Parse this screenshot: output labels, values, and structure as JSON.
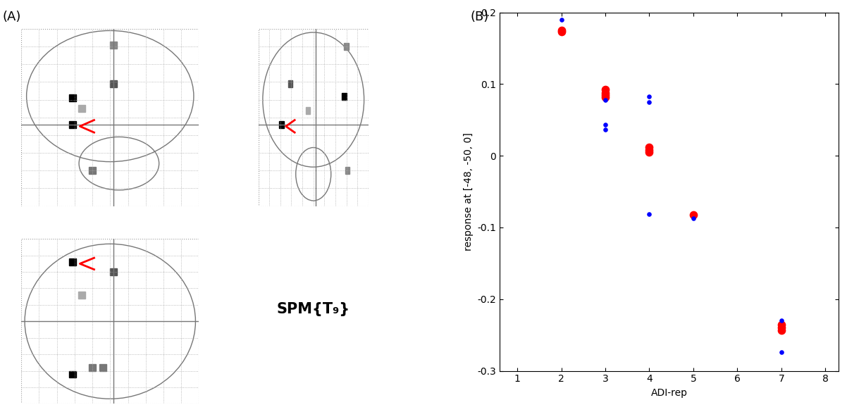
{
  "panel_labels": [
    "(A)",
    "(B)"
  ],
  "glass_brain": {
    "statistic_label": "SPM{T₉}"
  },
  "chart_data": {
    "type": "scatter",
    "x_label": "ADI-rep",
    "y_label": "response at [-48, -50, 0]",
    "series": [
      {
        "color": "#ff0000",
        "marker": "o",
        "x": [
          2,
          2,
          3,
          3,
          3,
          3,
          4,
          4,
          4,
          5,
          7,
          7,
          7
        ],
        "values": [
          0.173,
          0.175,
          0.092,
          0.088,
          0.085,
          0.082,
          0.012,
          0.008,
          0.005,
          -0.082,
          -0.236,
          -0.24,
          -0.244
        ]
      },
      {
        "color": "#0000ff",
        "marker": "o",
        "x": [
          2,
          3,
          3,
          3,
          4,
          4,
          4,
          5,
          7,
          7
        ],
        "values": [
          0.19,
          0.078,
          0.043,
          0.036,
          0.083,
          0.075,
          -0.081,
          -0.087,
          -0.23,
          -0.274
        ]
      }
    ],
    "xlim": [
      0.6,
      8.3
    ],
    "xticks": [
      1,
      2,
      3,
      4,
      5,
      6,
      7,
      8
    ],
    "ylim": [
      -0.3,
      0.2
    ],
    "yticks": [
      -0.3,
      -0.2,
      -0.1,
      0,
      0.1,
      0.2
    ],
    "grid": false
  }
}
